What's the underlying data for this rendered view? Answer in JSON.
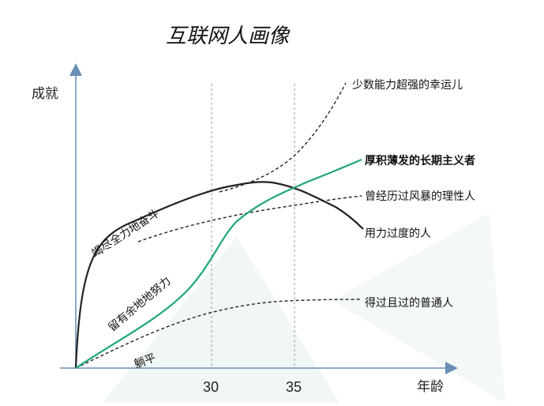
{
  "title": "互联网人画像",
  "y_axis_label": "成就",
  "x_axis_label": "年龄",
  "ticks": [
    "30",
    "35"
  ],
  "curves": {
    "lucky": "少数能力超强的幸运儿",
    "long_term": "厚积薄发的长期主义者",
    "storm": "曾经历过风暴的理性人",
    "overexert": "用力过度的人",
    "ordinary": "得过且过的普通人"
  },
  "phases": {
    "all_out": "竭尽全力地奋斗",
    "reserve": "留有余地地努力",
    "flat": "躺平"
  },
  "colors": {
    "axis": "#6a8fb5",
    "black_curve": "#222222",
    "green_curve": "#1fa67a",
    "guide": "#999999"
  }
}
